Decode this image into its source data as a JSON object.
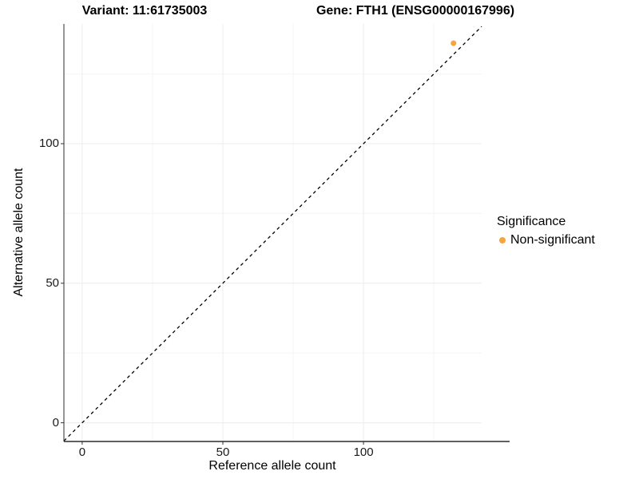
{
  "titles": {
    "left": "Variant: 11:61735003",
    "right": "Gene: FTH1 (ENSG00000167996)"
  },
  "legend": {
    "title": "Significance",
    "items": [
      {
        "label": "Non-significant",
        "color": "#F8A43C"
      }
    ]
  },
  "chart_data": {
    "type": "scatter",
    "title_left": "Variant: 11:61735003",
    "title_right": "Gene: FTH1 (ENSG00000167996)",
    "xlabel": "Reference allele count",
    "ylabel": "Alternative allele count",
    "xlim": [
      -6.5,
      142
    ],
    "ylim": [
      -6.7,
      142.9
    ],
    "x_major_ticks": [
      0,
      50,
      100
    ],
    "y_major_ticks": [
      0,
      50,
      100
    ],
    "x_minor_ticks": [
      25,
      75,
      125
    ],
    "y_minor_ticks": [
      25,
      75,
      125
    ],
    "grid": true,
    "legend_position": "right",
    "series": [
      {
        "name": "Non-significant",
        "color": "#F8A43C",
        "points": [
          {
            "x": 132,
            "y": 136
          }
        ]
      }
    ],
    "reference_line": {
      "slope": 1,
      "intercept": 0,
      "style": "dashed",
      "color": "#000000"
    },
    "colors": {
      "grid_major": "#ececec",
      "grid_minor": "#f5f5f5",
      "axis_line": "#2b2b2b",
      "tick_mark": "#333333",
      "point": "#F8A43C"
    }
  }
}
